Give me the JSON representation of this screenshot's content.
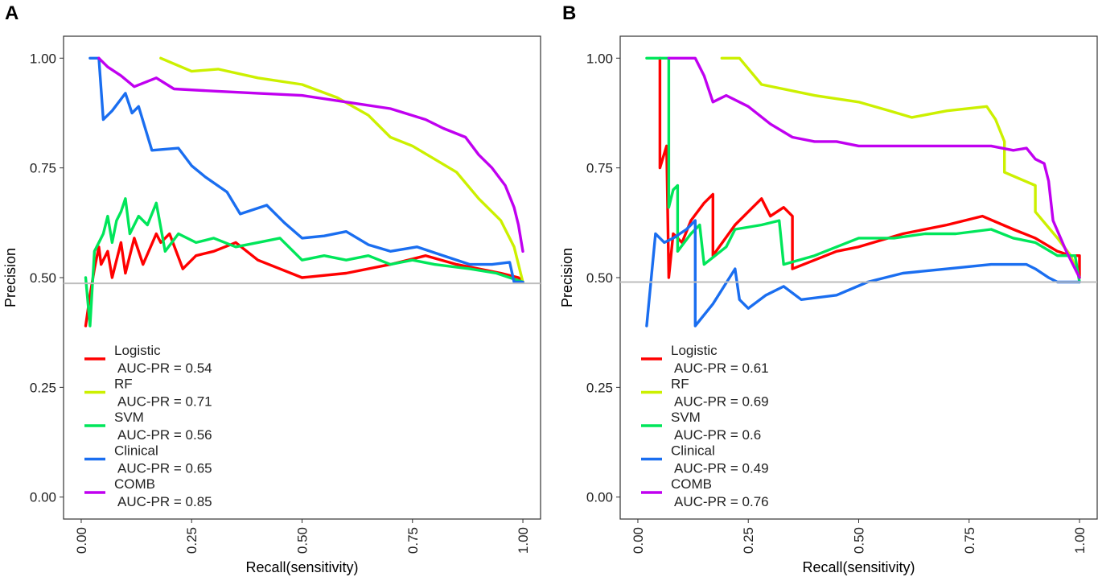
{
  "figure": {
    "panel_labels": [
      "A",
      "B"
    ]
  },
  "chart_data": [
    {
      "panel": "A",
      "type": "line",
      "title": "",
      "xlabel": "Recall(sensitivity)",
      "ylabel": "Precision",
      "xlim": [
        -0.04,
        1.04
      ],
      "ylim": [
        -0.05,
        1.05
      ],
      "x_ticks": [
        0,
        0.25,
        0.5,
        0.75,
        1
      ],
      "x_tick_labels": [
        "0.00",
        "0.25",
        "0.50",
        "0.75",
        "1.00"
      ],
      "y_ticks": [
        0,
        0.25,
        0.5,
        0.75,
        1
      ],
      "y_tick_labels": [
        "0.00",
        "0.25",
        "0.50",
        "0.75",
        "1.00"
      ],
      "baseline": 0.487,
      "baseline_color": "#bdbdbd",
      "legend_position": "bottom-left",
      "series": [
        {
          "name": "Logistic",
          "auc_label": "AUC-PR = 0.54",
          "color": "#ff0000",
          "points": [
            [
              0.01,
              0.39
            ],
            [
              0.02,
              0.46
            ],
            [
              0.03,
              0.52
            ],
            [
              0.04,
              0.57
            ],
            [
              0.045,
              0.53
            ],
            [
              0.06,
              0.56
            ],
            [
              0.07,
              0.5
            ],
            [
              0.09,
              0.58
            ],
            [
              0.1,
              0.51
            ],
            [
              0.12,
              0.59
            ],
            [
              0.14,
              0.53
            ],
            [
              0.17,
              0.6
            ],
            [
              0.18,
              0.58
            ],
            [
              0.2,
              0.6
            ],
            [
              0.23,
              0.52
            ],
            [
              0.26,
              0.55
            ],
            [
              0.3,
              0.56
            ],
            [
              0.35,
              0.58
            ],
            [
              0.4,
              0.54
            ],
            [
              0.45,
              0.52
            ],
            [
              0.5,
              0.5
            ],
            [
              0.6,
              0.51
            ],
            [
              0.7,
              0.53
            ],
            [
              0.78,
              0.55
            ],
            [
              0.85,
              0.53
            ],
            [
              0.95,
              0.51
            ],
            [
              0.99,
              0.5
            ],
            [
              1.0,
              0.49
            ]
          ]
        },
        {
          "name": "RF",
          "auc_label": "AUC-PR = 0.71",
          "color": "#ccf000",
          "points": [
            [
              0.18,
              1.0
            ],
            [
              0.25,
              0.97
            ],
            [
              0.31,
              0.975
            ],
            [
              0.4,
              0.955
            ],
            [
              0.5,
              0.94
            ],
            [
              0.58,
              0.91
            ],
            [
              0.65,
              0.87
            ],
            [
              0.7,
              0.82
            ],
            [
              0.75,
              0.8
            ],
            [
              0.8,
              0.77
            ],
            [
              0.85,
              0.74
            ],
            [
              0.9,
              0.68
            ],
            [
              0.95,
              0.63
            ],
            [
              0.98,
              0.57
            ],
            [
              1.0,
              0.49
            ]
          ]
        },
        {
          "name": "SVM",
          "auc_label": "AUC-PR = 0.56",
          "color": "#00e65a",
          "points": [
            [
              0.01,
              0.5
            ],
            [
              0.02,
              0.39
            ],
            [
              0.03,
              0.56
            ],
            [
              0.05,
              0.6
            ],
            [
              0.06,
              0.64
            ],
            [
              0.07,
              0.58
            ],
            [
              0.08,
              0.63
            ],
            [
              0.09,
              0.65
            ],
            [
              0.1,
              0.68
            ],
            [
              0.11,
              0.6
            ],
            [
              0.13,
              0.64
            ],
            [
              0.15,
              0.62
            ],
            [
              0.17,
              0.67
            ],
            [
              0.19,
              0.56
            ],
            [
              0.22,
              0.6
            ],
            [
              0.26,
              0.58
            ],
            [
              0.3,
              0.59
            ],
            [
              0.35,
              0.57
            ],
            [
              0.4,
              0.58
            ],
            [
              0.45,
              0.59
            ],
            [
              0.5,
              0.54
            ],
            [
              0.55,
              0.55
            ],
            [
              0.6,
              0.54
            ],
            [
              0.65,
              0.55
            ],
            [
              0.7,
              0.53
            ],
            [
              0.75,
              0.54
            ],
            [
              0.8,
              0.53
            ],
            [
              0.88,
              0.52
            ],
            [
              0.94,
              0.51
            ],
            [
              0.97,
              0.5
            ],
            [
              1.0,
              0.49
            ]
          ]
        },
        {
          "name": "Clinical",
          "auc_label": "AUC-PR = 0.65",
          "color": "#1a6ef0",
          "points": [
            [
              0.02,
              1.0
            ],
            [
              0.04,
              1.0
            ],
            [
              0.05,
              0.86
            ],
            [
              0.07,
              0.88
            ],
            [
              0.1,
              0.92
            ],
            [
              0.115,
              0.875
            ],
            [
              0.13,
              0.89
            ],
            [
              0.16,
              0.79
            ],
            [
              0.22,
              0.795
            ],
            [
              0.25,
              0.755
            ],
            [
              0.28,
              0.73
            ],
            [
              0.33,
              0.695
            ],
            [
              0.36,
              0.645
            ],
            [
              0.42,
              0.665
            ],
            [
              0.46,
              0.625
            ],
            [
              0.5,
              0.59
            ],
            [
              0.55,
              0.595
            ],
            [
              0.6,
              0.605
            ],
            [
              0.65,
              0.575
            ],
            [
              0.7,
              0.56
            ],
            [
              0.76,
              0.57
            ],
            [
              0.82,
              0.55
            ],
            [
              0.88,
              0.53
            ],
            [
              0.93,
              0.53
            ],
            [
              0.97,
              0.535
            ],
            [
              0.98,
              0.49
            ],
            [
              1.0,
              0.49
            ]
          ]
        },
        {
          "name": "COMB",
          "auc_label": "AUC-PR = 0.85",
          "color": "#c000f0",
          "points": [
            [
              0.04,
              1.0
            ],
            [
              0.06,
              0.98
            ],
            [
              0.09,
              0.96
            ],
            [
              0.12,
              0.935
            ],
            [
              0.17,
              0.955
            ],
            [
              0.21,
              0.93
            ],
            [
              0.3,
              0.925
            ],
            [
              0.4,
              0.92
            ],
            [
              0.5,
              0.915
            ],
            [
              0.6,
              0.9
            ],
            [
              0.7,
              0.885
            ],
            [
              0.78,
              0.86
            ],
            [
              0.82,
              0.84
            ],
            [
              0.87,
              0.82
            ],
            [
              0.9,
              0.78
            ],
            [
              0.93,
              0.75
            ],
            [
              0.96,
              0.71
            ],
            [
              0.98,
              0.66
            ],
            [
              0.99,
              0.62
            ],
            [
              1.0,
              0.56
            ]
          ]
        }
      ]
    },
    {
      "panel": "B",
      "type": "line",
      "title": "",
      "xlabel": "Recall(sensitivity)",
      "ylabel": "Precision",
      "xlim": [
        -0.04,
        1.04
      ],
      "ylim": [
        -0.05,
        1.05
      ],
      "x_ticks": [
        0,
        0.25,
        0.5,
        0.75,
        1
      ],
      "x_tick_labels": [
        "0.00",
        "0.25",
        "0.50",
        "0.75",
        "1.00"
      ],
      "y_ticks": [
        0,
        0.25,
        0.5,
        0.75,
        1
      ],
      "y_tick_labels": [
        "0.00",
        "0.25",
        "0.50",
        "0.75",
        "1.00"
      ],
      "baseline": 0.49,
      "baseline_color": "#bdbdbd",
      "legend_position": "bottom-left",
      "series": [
        {
          "name": "Logistic",
          "auc_label": "AUC-PR = 0.61",
          "color": "#ff0000",
          "points": [
            [
              0.05,
              1.0
            ],
            [
              0.05,
              0.75
            ],
            [
              0.065,
              0.8
            ],
            [
              0.07,
              0.5
            ],
            [
              0.08,
              0.6
            ],
            [
              0.1,
              0.58
            ],
            [
              0.12,
              0.63
            ],
            [
              0.15,
              0.67
            ],
            [
              0.17,
              0.69
            ],
            [
              0.17,
              0.55
            ],
            [
              0.22,
              0.62
            ],
            [
              0.26,
              0.66
            ],
            [
              0.28,
              0.68
            ],
            [
              0.3,
              0.64
            ],
            [
              0.33,
              0.66
            ],
            [
              0.35,
              0.64
            ],
            [
              0.35,
              0.52
            ],
            [
              0.4,
              0.54
            ],
            [
              0.45,
              0.56
            ],
            [
              0.5,
              0.57
            ],
            [
              0.6,
              0.6
            ],
            [
              0.7,
              0.62
            ],
            [
              0.78,
              0.64
            ],
            [
              0.85,
              0.61
            ],
            [
              0.9,
              0.59
            ],
            [
              0.95,
              0.56
            ],
            [
              0.98,
              0.55
            ],
            [
              1.0,
              0.55
            ],
            [
              1.0,
              0.5
            ]
          ]
        },
        {
          "name": "RF",
          "auc_label": "AUC-PR = 0.69",
          "color": "#ccf000",
          "points": [
            [
              0.19,
              1.0
            ],
            [
              0.23,
              1.0
            ],
            [
              0.28,
              0.94
            ],
            [
              0.4,
              0.915
            ],
            [
              0.5,
              0.9
            ],
            [
              0.57,
              0.88
            ],
            [
              0.62,
              0.865
            ],
            [
              0.7,
              0.88
            ],
            [
              0.79,
              0.89
            ],
            [
              0.81,
              0.86
            ],
            [
              0.83,
              0.81
            ],
            [
              0.83,
              0.74
            ],
            [
              0.9,
              0.71
            ],
            [
              0.9,
              0.65
            ],
            [
              0.95,
              0.59
            ],
            [
              0.98,
              0.55
            ],
            [
              1.0,
              0.5
            ]
          ]
        },
        {
          "name": "SVM",
          "auc_label": "AUC-PR = 0.6",
          "color": "#00e65a",
          "points": [
            [
              0.02,
              1.0
            ],
            [
              0.07,
              1.0
            ],
            [
              0.07,
              0.66
            ],
            [
              0.08,
              0.7
            ],
            [
              0.09,
              0.71
            ],
            [
              0.09,
              0.56
            ],
            [
              0.12,
              0.6
            ],
            [
              0.14,
              0.62
            ],
            [
              0.15,
              0.53
            ],
            [
              0.2,
              0.57
            ],
            [
              0.22,
              0.61
            ],
            [
              0.28,
              0.62
            ],
            [
              0.32,
              0.63
            ],
            [
              0.33,
              0.53
            ],
            [
              0.4,
              0.55
            ],
            [
              0.45,
              0.57
            ],
            [
              0.5,
              0.59
            ],
            [
              0.58,
              0.59
            ],
            [
              0.65,
              0.6
            ],
            [
              0.72,
              0.6
            ],
            [
              0.8,
              0.61
            ],
            [
              0.85,
              0.59
            ],
            [
              0.9,
              0.58
            ],
            [
              0.95,
              0.55
            ],
            [
              0.99,
              0.55
            ],
            [
              1.0,
              0.49
            ]
          ]
        },
        {
          "name": "Clinical",
          "auc_label": "AUC-PR = 0.49",
          "color": "#1a6ef0",
          "points": [
            [
              0.02,
              0.39
            ],
            [
              0.04,
              0.6
            ],
            [
              0.06,
              0.58
            ],
            [
              0.08,
              0.59
            ],
            [
              0.11,
              0.61
            ],
            [
              0.13,
              0.63
            ],
            [
              0.13,
              0.39
            ],
            [
              0.17,
              0.44
            ],
            [
              0.22,
              0.52
            ],
            [
              0.23,
              0.45
            ],
            [
              0.25,
              0.43
            ],
            [
              0.29,
              0.46
            ],
            [
              0.33,
              0.48
            ],
            [
              0.37,
              0.45
            ],
            [
              0.45,
              0.46
            ],
            [
              0.52,
              0.49
            ],
            [
              0.6,
              0.51
            ],
            [
              0.7,
              0.52
            ],
            [
              0.8,
              0.53
            ],
            [
              0.88,
              0.53
            ],
            [
              0.9,
              0.52
            ],
            [
              0.93,
              0.5
            ],
            [
              0.95,
              0.49
            ],
            [
              0.98,
              0.49
            ],
            [
              1.0,
              0.49
            ]
          ]
        },
        {
          "name": "COMB",
          "auc_label": "AUC-PR = 0.76",
          "color": "#c000f0",
          "points": [
            [
              0.07,
              1.0
            ],
            [
              0.1,
              1.0
            ],
            [
              0.13,
              1.0
            ],
            [
              0.15,
              0.96
            ],
            [
              0.17,
              0.9
            ],
            [
              0.2,
              0.915
            ],
            [
              0.25,
              0.89
            ],
            [
              0.3,
              0.85
            ],
            [
              0.35,
              0.82
            ],
            [
              0.4,
              0.81
            ],
            [
              0.45,
              0.81
            ],
            [
              0.5,
              0.8
            ],
            [
              0.6,
              0.8
            ],
            [
              0.7,
              0.8
            ],
            [
              0.8,
              0.8
            ],
            [
              0.85,
              0.79
            ],
            [
              0.88,
              0.795
            ],
            [
              0.9,
              0.77
            ],
            [
              0.92,
              0.76
            ],
            [
              0.93,
              0.72
            ],
            [
              0.94,
              0.63
            ],
            [
              0.97,
              0.56
            ],
            [
              1.0,
              0.5
            ]
          ]
        }
      ]
    }
  ]
}
